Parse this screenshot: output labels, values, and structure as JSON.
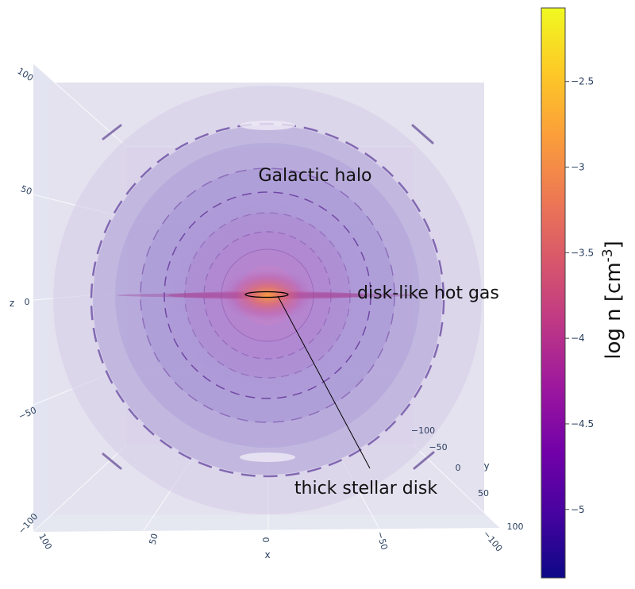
{
  "chart_data": {
    "type": "3d-volume",
    "colorscale": [
      "#0d0887",
      "#46039f",
      "#7201a8",
      "#9c179e",
      "#bd3786",
      "#d8576b",
      "#ed7953",
      "#fb9f3a",
      "#fdca26",
      "#f0f921"
    ],
    "colorbar": {
      "title": "log n [cm",
      "title_sup": "-3",
      "title_end": "]",
      "range": [
        -5.4,
        -2.07
      ],
      "ticks": [
        -2.5,
        -3,
        -3.5,
        -4,
        -4.5,
        -5
      ],
      "tick_labels": [
        "−2.5",
        "−3",
        "−3.5",
        "−4",
        "−4.5",
        "−5"
      ]
    },
    "axes": {
      "x": {
        "title": "x",
        "ticks": [
          100,
          50,
          0,
          -50,
          -100
        ],
        "tick_labels": [
          "100",
          "50",
          "0",
          "−50",
          "−100"
        ]
      },
      "y": {
        "title": "y",
        "ticks": [
          -100,
          -50,
          0,
          50,
          100
        ],
        "tick_labels": [
          "−100",
          "−50",
          "0",
          "50",
          "100"
        ]
      },
      "z": {
        "title": "z",
        "ticks": [
          100,
          50,
          0,
          -50,
          -100
        ],
        "tick_labels": [
          "100",
          "50",
          "0",
          "−50",
          "−100"
        ]
      }
    },
    "annotations": {
      "halo": "Galactic halo",
      "hot_gas": "disk-like hot gas",
      "stellar_disk": "thick stellar disk"
    }
  }
}
